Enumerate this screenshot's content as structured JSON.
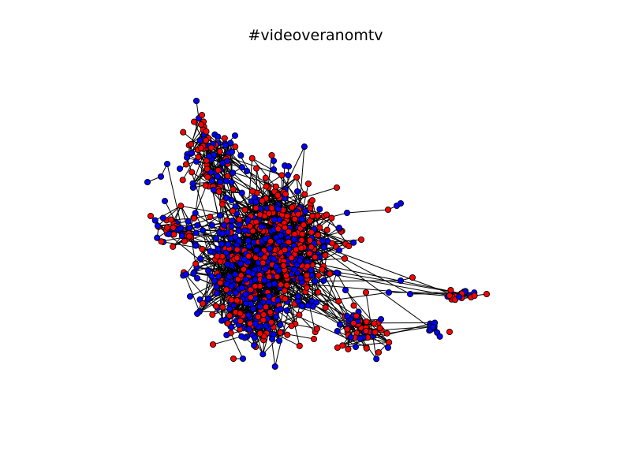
{
  "figure": {
    "title": "#videoveranomtv"
  },
  "graph_style": {
    "node_colors": [
      "#ff0000",
      "#0000ff"
    ],
    "node_stroke": "#000000",
    "edge_color": "#000000",
    "background": "#ffffff"
  }
}
